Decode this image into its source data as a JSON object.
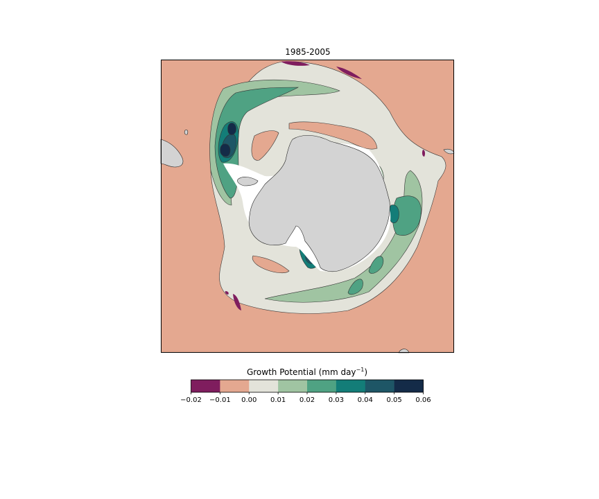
{
  "title": "1985-2005",
  "colorbar": {
    "label_main": "Growth Potential (mm day",
    "label_exp": "−1",
    "label_close": ")",
    "ticks": [
      "−0.02",
      "−0.01",
      "0.00",
      "0.01",
      "0.02",
      "0.03",
      "0.04",
      "0.05",
      "0.06"
    ],
    "levels": [
      -0.02,
      -0.01,
      0.0,
      0.01,
      0.02,
      0.03,
      0.04,
      0.05,
      0.06
    ],
    "colors": [
      "#7f1d5e",
      "#e4a890",
      "#e3e3da",
      "#a0c4a2",
      "#4fa283",
      "#137d78",
      "#1e5666",
      "#142b48"
    ]
  },
  "map_colors": {
    "land": "#d3d3d3",
    "ice_shelf": "#ffffff",
    "ocean_background": "#e4a890"
  }
}
